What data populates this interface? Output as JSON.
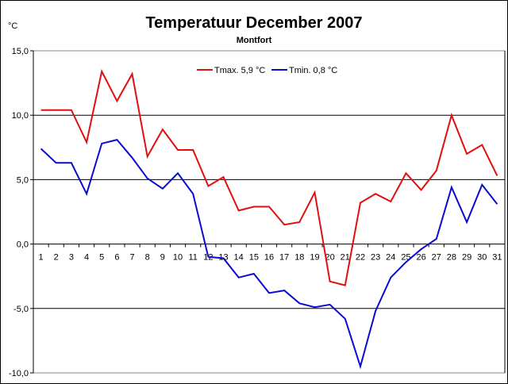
{
  "chart_data": {
    "type": "line",
    "title": "Temperatuur December 2007",
    "subtitle": "Montfort",
    "ylabel": "°C",
    "xlabel": "",
    "ylim": [
      -10,
      15
    ],
    "yticks": [
      "15,0",
      "10,0",
      "5,0",
      "0,0",
      "-5,0",
      "-10,0"
    ],
    "ytick_values": [
      15,
      10,
      5,
      0,
      -5,
      -10
    ],
    "x": [
      1,
      2,
      3,
      4,
      5,
      6,
      7,
      8,
      9,
      10,
      11,
      12,
      13,
      14,
      15,
      16,
      17,
      18,
      19,
      20,
      21,
      22,
      23,
      24,
      25,
      26,
      27,
      28,
      29,
      30,
      31
    ],
    "grid": true,
    "legend_position": "top",
    "series": [
      {
        "name": "Tmax. 5,9 °C",
        "color": "#e01010",
        "values": [
          10.4,
          10.4,
          10.4,
          7.9,
          13.4,
          11.1,
          13.2,
          6.8,
          8.9,
          7.3,
          7.3,
          4.5,
          5.2,
          2.6,
          2.9,
          2.9,
          1.5,
          1.7,
          4.0,
          -2.9,
          -3.2,
          3.2,
          3.9,
          3.3,
          5.5,
          4.2,
          5.7,
          10.0,
          7.0,
          7.7,
          5.3
        ]
      },
      {
        "name": "Tmin. 0,8 °C",
        "color": "#0a0ad0",
        "values": [
          7.4,
          6.3,
          6.3,
          3.9,
          7.8,
          8.1,
          6.7,
          5.1,
          4.3,
          5.5,
          3.9,
          -1.0,
          -1.1,
          -2.6,
          -2.3,
          -3.8,
          -3.6,
          -4.6,
          -4.9,
          -4.7,
          -5.8,
          -9.5,
          -5.2,
          -2.6,
          -1.4,
          -0.4,
          0.4,
          4.4,
          1.7,
          4.6,
          3.1
        ]
      }
    ]
  }
}
